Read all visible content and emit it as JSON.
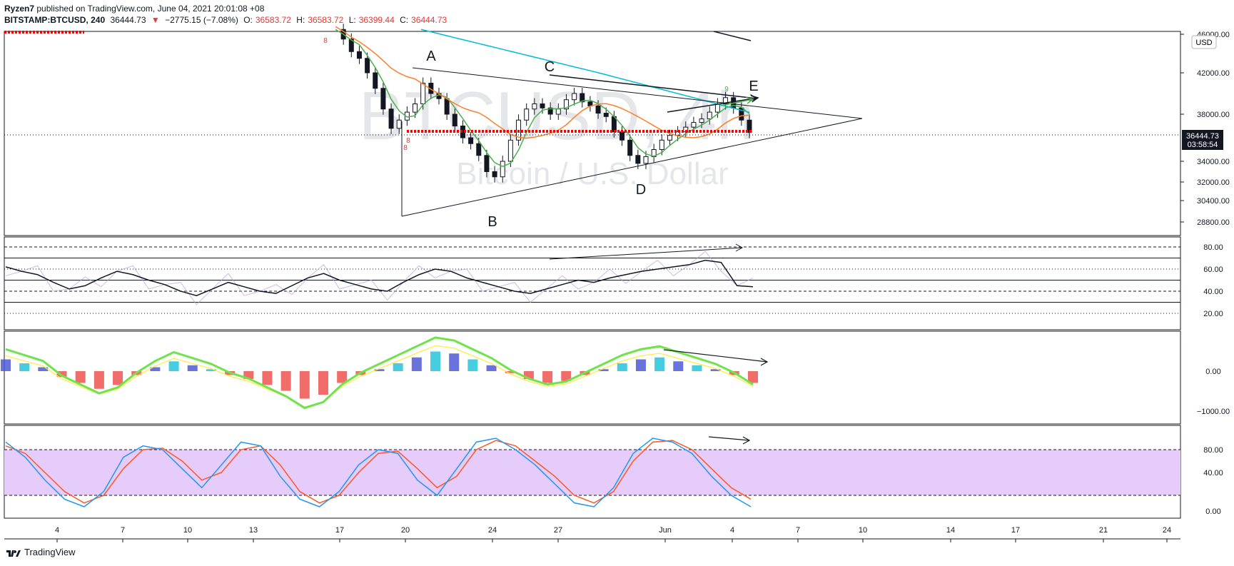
{
  "header": {
    "publisher": "Ryzen7",
    "published_text": "published on TradingView.com, June 04, 2021 20:01:08 +08",
    "symbol": "BITSTAMP:BTCUSD, 240",
    "last": "36444.73",
    "change": "−2775.15 (−7.08%)",
    "o_label": "O:",
    "o_value": "36583.72",
    "h_label": "H:",
    "h_value": "36583.72",
    "l_label": "L:",
    "l_value": "36399.44",
    "c_label": "C:",
    "c_value": "36444.73"
  },
  "watermark": {
    "ticker": "BTCUSD, 4h",
    "name": "Bitcoin / U.S. Dollar"
  },
  "price_axis": {
    "currency": "USD",
    "ticks": [
      "46000.00",
      "42000.00",
      "38000.00",
      "34000.00",
      "32000.00",
      "30400.00",
      "28800.00"
    ],
    "last_price_label": "36444.73",
    "countdown_label": "03:58:54"
  },
  "wave_labels": [
    "A",
    "B",
    "C",
    "D",
    "E"
  ],
  "rsi_axis": {
    "ticks": [
      "80.00",
      "60.00",
      "40.00",
      "20.00"
    ]
  },
  "macd_axis": {
    "ticks": [
      "0.00",
      "−1000.00"
    ]
  },
  "stoch_axis": {
    "ticks": [
      "80.00",
      "40.00",
      "0.00"
    ]
  },
  "time_axis": {
    "ticks": [
      "4",
      "7",
      "10",
      "13",
      "17",
      "20",
      "24",
      "27",
      "Jun",
      "4",
      "7",
      "10",
      "14",
      "17",
      "21",
      "24"
    ]
  },
  "td_counts": [
    "8",
    "8",
    "9",
    "8"
  ],
  "footer": {
    "brand": "TradingView"
  },
  "colors": {
    "up": "#26a69a",
    "down": "#ef5350",
    "candle": "#131722",
    "ema_short": "#4caf50",
    "ema_mid": "#ff7f27",
    "ema_long": "#00bcd4",
    "support": "#ff0000",
    "stoch_band": "#e6ccfa",
    "stoch_k": "#2196f3",
    "stoch_d": "#ff5722"
  },
  "chart_data": [
    {
      "type": "candlestick",
      "title": "BITSTAMP:BTCUSD, 240",
      "ylabel": "USD",
      "ylim": [
        28800,
        46000
      ],
      "x_range_days": [
        "May 1",
        "Jun 24"
      ],
      "close_series_approx": [
        46500,
        45500,
        44200,
        43500,
        42000,
        40500,
        38500,
        36800,
        37500,
        38200,
        39000,
        41000,
        40000,
        39500,
        38000,
        37000,
        36000,
        35500,
        34500,
        33000,
        32500,
        34000,
        35800,
        37500,
        38500,
        39000,
        38600,
        38000,
        38500,
        39400,
        40000,
        39200,
        38800,
        38100,
        37800,
        36500,
        35800,
        34500,
        33800,
        34400,
        35000,
        35800,
        36200,
        36500,
        36900,
        37300,
        37600,
        38200,
        39000,
        39600,
        38600,
        37500,
        36444.73
      ],
      "annotations": [
        "A",
        "B",
        "C",
        "D",
        "E"
      ],
      "overlays": [
        "EMA short (green)",
        "EMA mid (orange)",
        "EMA long (cyan)",
        "support line (red dotted)",
        "triangle trendlines"
      ],
      "last_value": 36444.73
    },
    {
      "type": "line",
      "title": "RSI",
      "ylim": [
        0,
        100
      ],
      "levels": [
        80,
        70,
        60,
        50,
        40,
        30,
        20
      ],
      "series": [
        {
          "values": [
            62,
            58,
            55,
            48,
            42,
            45,
            52,
            58,
            55,
            50,
            46,
            40,
            36,
            42,
            48,
            44,
            40,
            38,
            45,
            52,
            56,
            50,
            46,
            42,
            40,
            48,
            55,
            60,
            58,
            52,
            48,
            44,
            40,
            38,
            42,
            46,
            50,
            48,
            52,
            55,
            58,
            60,
            62,
            64,
            68,
            66,
            45,
            44
          ]
        }
      ]
    },
    {
      "type": "bar",
      "title": "MACD",
      "ylim": [
        -1500,
        1000
      ],
      "histogram_approx": [
        300,
        200,
        100,
        -150,
        -300,
        -450,
        -350,
        -100,
        100,
        250,
        150,
        50,
        -100,
        -200,
        -350,
        -500,
        -700,
        -600,
        -300,
        -100,
        50,
        200,
        350,
        500,
        450,
        300,
        150,
        -50,
        -200,
        -300,
        -250,
        -100,
        50,
        200,
        300,
        350,
        250,
        150,
        50,
        -100,
        -300
      ],
      "last_macd_line_near_zero": true
    },
    {
      "type": "line",
      "title": "Stochastic",
      "ylim": [
        0,
        100
      ],
      "band": [
        20,
        80
      ],
      "series": [
        {
          "values": [
            90,
            70,
            40,
            15,
            5,
            25,
            70,
            85,
            80,
            55,
            30,
            60,
            90,
            85,
            45,
            15,
            5,
            25,
            60,
            80,
            75,
            40,
            20,
            55,
            90,
            95,
            80,
            60,
            35,
            10,
            5,
            30,
            75,
            95,
            90,
            75,
            45,
            20,
            5
          ]
        },
        {
          "values": [
            85,
            75,
            50,
            25,
            10,
            20,
            55,
            80,
            82,
            65,
            40,
            50,
            80,
            85,
            60,
            25,
            10,
            20,
            50,
            75,
            78,
            55,
            30,
            45,
            80,
            92,
            85,
            65,
            45,
            20,
            10,
            25,
            65,
            90,
            92,
            80,
            55,
            30,
            15
          ]
        }
      ]
    }
  ]
}
